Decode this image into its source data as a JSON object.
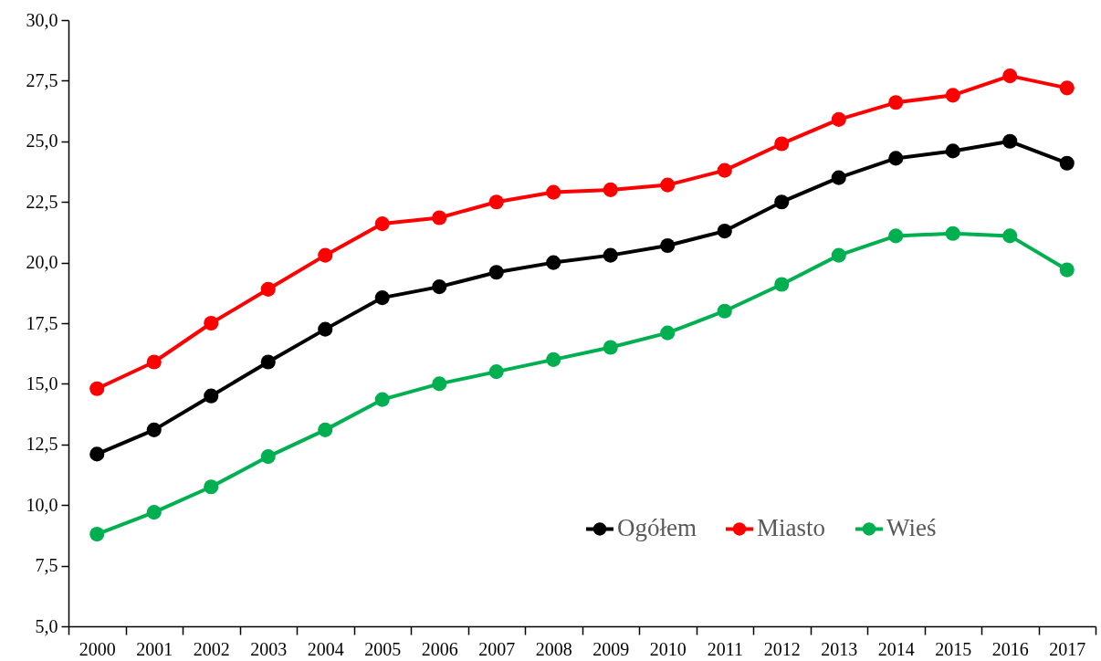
{
  "chart_data": {
    "type": "line",
    "categories": [
      "2000",
      "2001",
      "2002",
      "2003",
      "2004",
      "2005",
      "2006",
      "2007",
      "2008",
      "2009",
      "2010",
      "2011",
      "2012",
      "2013",
      "2014",
      "2015",
      "2016",
      "2017"
    ],
    "series": [
      {
        "name": "Ogółem",
        "color": "#000000",
        "values": [
          12.1,
          13.1,
          14.5,
          15.9,
          17.25,
          18.55,
          19.0,
          19.6,
          20.0,
          20.3,
          20.7,
          21.3,
          22.5,
          23.5,
          24.3,
          24.6,
          25.0,
          24.1
        ]
      },
      {
        "name": "Miasto",
        "color": "#ff0000",
        "values": [
          14.8,
          15.9,
          17.5,
          18.9,
          20.3,
          21.6,
          21.85,
          22.5,
          22.9,
          23.0,
          23.2,
          23.8,
          24.9,
          25.9,
          26.6,
          26.9,
          27.7,
          27.2
        ]
      },
      {
        "name": "Wieś",
        "color": "#00b050",
        "values": [
          8.8,
          9.7,
          10.75,
          12.0,
          13.1,
          14.35,
          15.0,
          15.5,
          16.0,
          16.5,
          17.1,
          18.0,
          19.1,
          20.3,
          21.1,
          21.2,
          21.1,
          19.7
        ]
      }
    ],
    "ylim": [
      5,
      30
    ],
    "yticks": [
      {
        "value": 5,
        "label": "5,0"
      },
      {
        "value": 7.5,
        "label": "7,5"
      },
      {
        "value": 10,
        "label": "10,0"
      },
      {
        "value": 12.5,
        "label": "12,5"
      },
      {
        "value": 15,
        "label": "15,0"
      },
      {
        "value": 17.5,
        "label": "17,5"
      },
      {
        "value": 20,
        "label": "20,0"
      },
      {
        "value": 22.5,
        "label": "22,5"
      },
      {
        "value": 25,
        "label": "25,0"
      },
      {
        "value": 27.5,
        "label": "27,5"
      },
      {
        "value": 30,
        "label": "30,0"
      }
    ],
    "grid": false,
    "legend": "bottom right",
    "marker": "circle",
    "line_style": "solid"
  }
}
